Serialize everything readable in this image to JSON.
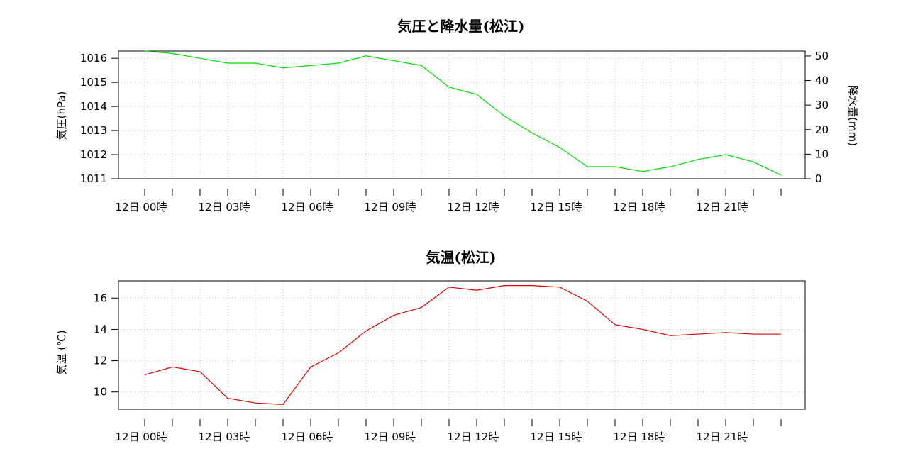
{
  "chart_data": [
    {
      "type": "line",
      "title": "気圧と降水量(松江)",
      "ylabel": "気圧(hPa)",
      "ylabel_right": "降水量(mm)",
      "x_tick_labels": [
        "12日 00時",
        "12日 03時",
        "12日 06時",
        "12日 09時",
        "12日 12時",
        "12日 15時",
        "12日 18時",
        "12日 21時"
      ],
      "x_hours": [
        0,
        1,
        2,
        3,
        4,
        5,
        6,
        7,
        8,
        9,
        10,
        11,
        12,
        13,
        14,
        15,
        16,
        17,
        18,
        19,
        20,
        21,
        22,
        23
      ],
      "yticks_left": [
        "1011",
        "1012",
        "1013",
        "1014",
        "1015",
        "1016"
      ],
      "yticks_right": [
        "0",
        "10",
        "20",
        "30",
        "40",
        "50"
      ],
      "ylim": [
        1011,
        1016.3
      ],
      "ylim_right": [
        0,
        52
      ],
      "grid": true,
      "series": [
        {
          "color": "#00dd00",
          "values": [
            1016.3,
            1016.2,
            1016.0,
            1015.8,
            1015.8,
            1015.6,
            1015.7,
            1015.8,
            1016.1,
            1015.9,
            1015.7,
            1014.8,
            1014.5,
            1013.6,
            1012.9,
            1012.3,
            1011.5,
            1011.5,
            1011.3,
            1011.5,
            1011.8,
            1012.0,
            1011.7,
            1011.15
          ]
        }
      ]
    },
    {
      "type": "line",
      "title": "気温(松江)",
      "ylabel": "気温 (℃)",
      "x_tick_labels": [
        "12日 00時",
        "12日 03時",
        "12日 06時",
        "12日 09時",
        "12日 12時",
        "12日 15時",
        "12日 18時",
        "12日 21時"
      ],
      "x_hours": [
        0,
        1,
        2,
        3,
        4,
        5,
        6,
        7,
        8,
        9,
        10,
        11,
        12,
        13,
        14,
        15,
        16,
        17,
        18,
        19,
        20,
        21,
        22,
        23
      ],
      "yticks_left": [
        "10",
        "12",
        "14",
        "16"
      ],
      "ylim": [
        8.9,
        17.1
      ],
      "grid": true,
      "series": [
        {
          "color": "#dd0000",
          "values": [
            11.1,
            11.6,
            11.3,
            9.6,
            9.3,
            9.2,
            11.6,
            12.5,
            13.9,
            14.9,
            15.4,
            16.7,
            16.5,
            16.8,
            16.8,
            16.7,
            15.8,
            14.3,
            14.0,
            13.6,
            13.7,
            13.8,
            13.7,
            13.7
          ]
        }
      ]
    }
  ]
}
